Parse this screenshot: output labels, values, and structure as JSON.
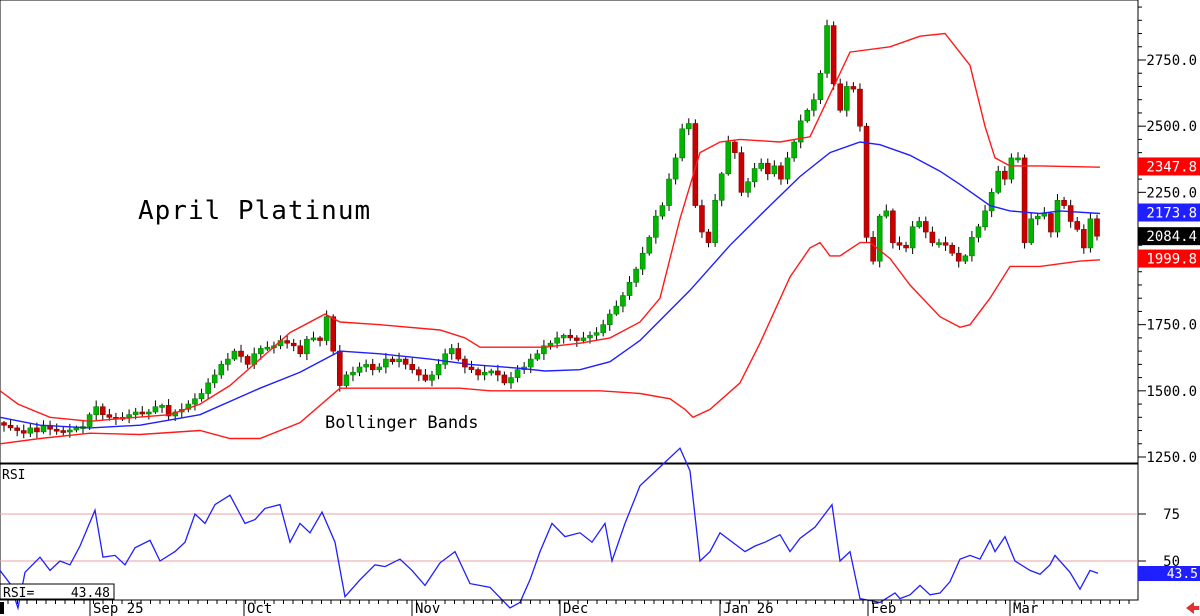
{
  "chart_data": [
    {
      "type": "candlestick",
      "title": "April Platinum",
      "annotation": "Bollinger Bands",
      "ylim": [
        1230,
        2930
      ],
      "y_ticks": [
        "1250.0",
        "1500.0",
        "1750.0",
        "2000.0",
        "2250.0",
        "2500.0",
        "2750.0"
      ],
      "y_tick_values": [
        1250,
        1500,
        1750,
        2000,
        2250,
        2500,
        2750
      ],
      "x_labels": [
        "Sep 25",
        "Oct",
        "Nov",
        "Dec",
        "Jan 26",
        "Feb",
        "Mar"
      ],
      "value_labels": [
        {
          "text": "2347.8",
          "value": 2347.8,
          "color": "#ff0000"
        },
        {
          "text": "2173.8",
          "value": 2173.8,
          "color": "#1f1fff"
        },
        {
          "text": "2084.4",
          "value": 2084.4,
          "color": "#000000"
        },
        {
          "text": "1999.8",
          "value": 1999.8,
          "color": "#ff0000"
        }
      ],
      "close_series": [
        1370,
        1360,
        1350,
        1340,
        1360,
        1345,
        1370,
        1355,
        1350,
        1345,
        1352,
        1360,
        1365,
        1410,
        1440,
        1410,
        1400,
        1395,
        1400,
        1410,
        1420,
        1415,
        1420,
        1440,
        1445,
        1405,
        1420,
        1430,
        1450,
        1470,
        1490,
        1530,
        1560,
        1600,
        1620,
        1650,
        1630,
        1600,
        1640,
        1660,
        1665,
        1670,
        1690,
        1680,
        1670,
        1640,
        1695,
        1700,
        1690,
        1780,
        1650,
        1520,
        1560,
        1570,
        1590,
        1600,
        1580,
        1590,
        1620,
        1610,
        1620,
        1600,
        1580,
        1560,
        1540,
        1560,
        1600,
        1640,
        1660,
        1620,
        1590,
        1580,
        1560,
        1570,
        1575,
        1560,
        1530,
        1550,
        1580,
        1590,
        1620,
        1640,
        1670,
        1680,
        1700,
        1710,
        1700,
        1690,
        1700,
        1710,
        1720,
        1750,
        1790,
        1820,
        1860,
        1910,
        1960,
        2020,
        2080,
        2160,
        2200,
        2300,
        2380,
        2490,
        2510,
        2200,
        2100,
        2060,
        2220,
        2320,
        2440,
        2400,
        2250,
        2290,
        2340,
        2360,
        2320,
        2350,
        2300,
        2380,
        2440,
        2520,
        2560,
        2600,
        2700,
        2880,
        2660,
        2560,
        2650,
        2640,
        2500,
        2080,
        1990,
        2160,
        2180,
        2060,
        2050,
        2040,
        2120,
        2140,
        2100,
        2060,
        2060,
        2050,
        2020,
        1990,
        2010,
        2080,
        2120,
        2180,
        2250,
        2330,
        2300,
        2380,
        2380,
        2060,
        2150,
        2160,
        2170,
        2100,
        2220,
        2200,
        2140,
        2110,
        2040,
        2150,
        2084.4
      ],
      "bollinger_upper": [
        [
          0,
          1500
        ],
        [
          18,
          1450
        ],
        [
          50,
          1400
        ],
        [
          90,
          1385
        ],
        [
          120,
          1395
        ],
        [
          170,
          1410
        ],
        [
          200,
          1450
        ],
        [
          230,
          1520
        ],
        [
          260,
          1620
        ],
        [
          290,
          1720
        ],
        [
          325,
          1790
        ],
        [
          340,
          1760
        ],
        [
          380,
          1750
        ],
        [
          440,
          1730
        ],
        [
          465,
          1700
        ],
        [
          480,
          1665
        ],
        [
          520,
          1665
        ],
        [
          545,
          1665
        ],
        [
          580,
          1680
        ],
        [
          610,
          1700
        ],
        [
          640,
          1760
        ],
        [
          660,
          1850
        ],
        [
          680,
          2150
        ],
        [
          700,
          2400
        ],
        [
          720,
          2440
        ],
        [
          740,
          2450
        ],
        [
          780,
          2440
        ],
        [
          810,
          2460
        ],
        [
          830,
          2620
        ],
        [
          850,
          2780
        ],
        [
          890,
          2800
        ],
        [
          920,
          2840
        ],
        [
          945,
          2850
        ],
        [
          970,
          2730
        ],
        [
          985,
          2500
        ],
        [
          995,
          2380
        ],
        [
          1010,
          2350
        ],
        [
          1040,
          2350
        ],
        [
          1100,
          2345
        ]
      ],
      "bollinger_middle": [
        [
          0,
          1400
        ],
        [
          40,
          1370
        ],
        [
          90,
          1360
        ],
        [
          140,
          1370
        ],
        [
          200,
          1410
        ],
        [
          260,
          1510
        ],
        [
          300,
          1570
        ],
        [
          340,
          1650
        ],
        [
          380,
          1640
        ],
        [
          430,
          1620
        ],
        [
          470,
          1600
        ],
        [
          520,
          1585
        ],
        [
          545,
          1575
        ],
        [
          580,
          1580
        ],
        [
          610,
          1610
        ],
        [
          640,
          1690
        ],
        [
          690,
          1880
        ],
        [
          730,
          2050
        ],
        [
          770,
          2200
        ],
        [
          800,
          2310
        ],
        [
          830,
          2400
        ],
        [
          860,
          2440
        ],
        [
          880,
          2430
        ],
        [
          910,
          2390
        ],
        [
          940,
          2330
        ],
        [
          960,
          2280
        ],
        [
          990,
          2200
        ],
        [
          1010,
          2180
        ],
        [
          1040,
          2170
        ],
        [
          1060,
          2180
        ],
        [
          1100,
          2170
        ]
      ],
      "bollinger_lower": [
        [
          0,
          1300
        ],
        [
          40,
          1320
        ],
        [
          90,
          1340
        ],
        [
          140,
          1335
        ],
        [
          200,
          1350
        ],
        [
          230,
          1320
        ],
        [
          260,
          1320
        ],
        [
          300,
          1380
        ],
        [
          340,
          1510
        ],
        [
          380,
          1510
        ],
        [
          430,
          1510
        ],
        [
          460,
          1510
        ],
        [
          490,
          1500
        ],
        [
          520,
          1500
        ],
        [
          550,
          1500
        ],
        [
          600,
          1500
        ],
        [
          640,
          1490
        ],
        [
          670,
          1470
        ],
        [
          685,
          1430
        ],
        [
          693,
          1400
        ],
        [
          710,
          1430
        ],
        [
          740,
          1530
        ],
        [
          760,
          1680
        ],
        [
          790,
          1930
        ],
        [
          810,
          2040
        ],
        [
          820,
          2060
        ],
        [
          830,
          2010
        ],
        [
          840,
          2010
        ],
        [
          860,
          2060
        ],
        [
          870,
          2060
        ],
        [
          890,
          2000
        ],
        [
          910,
          1900
        ],
        [
          940,
          1780
        ],
        [
          960,
          1740
        ],
        [
          970,
          1750
        ],
        [
          990,
          1850
        ],
        [
          1010,
          1970
        ],
        [
          1040,
          1970
        ],
        [
          1080,
          1990
        ],
        [
          1100,
          1995
        ]
      ],
      "rsi_ylim": [
        20,
        115
      ],
      "rsi_ticks": [
        "50",
        "75"
      ],
      "rsi_tick_values": [
        50,
        75
      ],
      "rsi_label": "RSI",
      "rsi_readout_label": "RSI=",
      "rsi_readout_value": "43.48",
      "rsi_badge": "43.5",
      "rsi_series": [
        [
          0,
          45
        ],
        [
          10,
          38
        ],
        [
          18,
          25
        ],
        [
          25,
          44
        ],
        [
          40,
          52
        ],
        [
          50,
          45
        ],
        [
          60,
          50
        ],
        [
          70,
          48
        ],
        [
          80,
          58
        ],
        [
          95,
          77
        ],
        [
          103,
          52
        ],
        [
          115,
          53
        ],
        [
          125,
          48
        ],
        [
          135,
          57
        ],
        [
          150,
          61
        ],
        [
          160,
          50
        ],
        [
          175,
          55
        ],
        [
          185,
          60
        ],
        [
          195,
          75
        ],
        [
          205,
          70
        ],
        [
          215,
          80
        ],
        [
          230,
          85
        ],
        [
          245,
          70
        ],
        [
          255,
          72
        ],
        [
          265,
          78
        ],
        [
          280,
          80
        ],
        [
          290,
          60
        ],
        [
          300,
          70
        ],
        [
          310,
          65
        ],
        [
          322,
          76
        ],
        [
          335,
          60
        ],
        [
          345,
          31
        ],
        [
          360,
          40
        ],
        [
          375,
          48
        ],
        [
          385,
          47
        ],
        [
          400,
          51
        ],
        [
          412,
          45
        ],
        [
          425,
          37
        ],
        [
          440,
          49
        ],
        [
          455,
          55
        ],
        [
          470,
          38
        ],
        [
          490,
          36
        ],
        [
          510,
          25
        ],
        [
          520,
          28
        ],
        [
          530,
          40
        ],
        [
          540,
          55
        ],
        [
          552,
          70
        ],
        [
          565,
          63
        ],
        [
          580,
          65
        ],
        [
          592,
          60
        ],
        [
          605,
          70
        ],
        [
          612,
          50
        ],
        [
          625,
          70
        ],
        [
          640,
          90
        ],
        [
          660,
          100
        ],
        [
          680,
          110
        ],
        [
          690,
          98
        ],
        [
          700,
          50
        ],
        [
          710,
          55
        ],
        [
          720,
          65
        ],
        [
          745,
          55
        ],
        [
          755,
          58
        ],
        [
          765,
          60
        ],
        [
          780,
          64
        ],
        [
          790,
          55
        ],
        [
          800,
          62
        ],
        [
          815,
          68
        ],
        [
          832,
          80
        ],
        [
          840,
          50
        ],
        [
          850,
          55
        ],
        [
          860,
          30
        ],
        [
          880,
          28
        ],
        [
          895,
          33
        ],
        [
          900,
          30
        ],
        [
          910,
          32
        ],
        [
          920,
          37
        ],
        [
          930,
          32
        ],
        [
          940,
          33
        ],
        [
          950,
          39
        ],
        [
          960,
          51
        ],
        [
          970,
          53
        ],
        [
          980,
          51
        ],
        [
          990,
          61
        ],
        [
          995,
          55
        ],
        [
          1005,
          63
        ],
        [
          1015,
          50
        ],
        [
          1030,
          45
        ],
        [
          1040,
          43
        ],
        [
          1050,
          48
        ],
        [
          1055,
          53
        ],
        [
          1070,
          44
        ],
        [
          1080,
          35
        ],
        [
          1090,
          45
        ],
        [
          1098,
          43.5
        ]
      ]
    }
  ]
}
